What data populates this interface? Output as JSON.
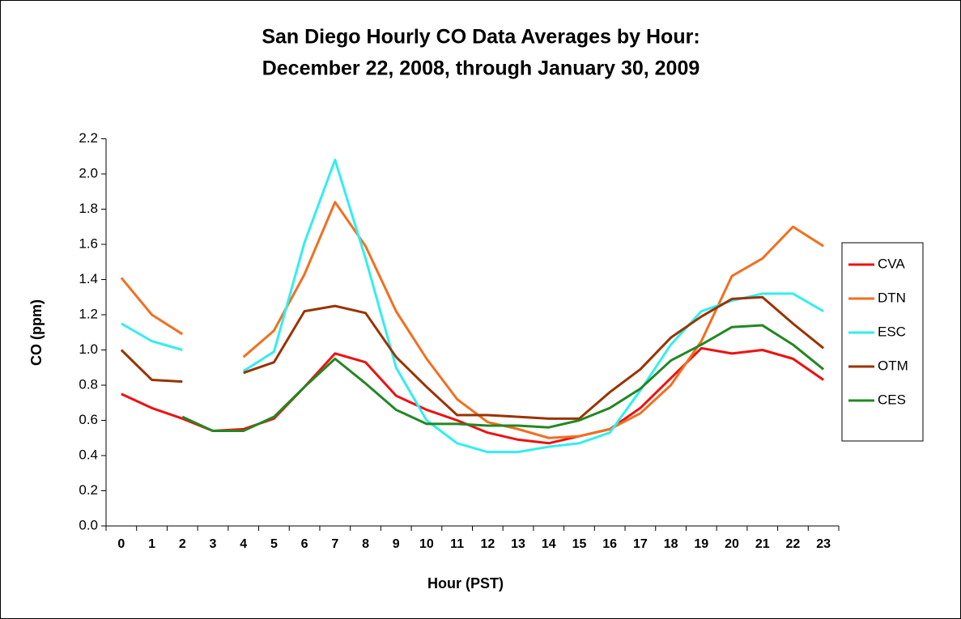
{
  "chart_data": {
    "type": "line",
    "title": [
      "San Diego Hourly CO Data Averages by Hour:",
      "December 22, 2008, through January 30, 2009"
    ],
    "x_label": "Hour (PST)",
    "y_label": "CO (ppm)",
    "categories": [
      "0",
      "1",
      "2",
      "3",
      "4",
      "5",
      "6",
      "7",
      "8",
      "9",
      "10",
      "11",
      "12",
      "13",
      "14",
      "15",
      "16",
      "17",
      "18",
      "19",
      "20",
      "21",
      "22",
      "23"
    ],
    "ylim": [
      0,
      2.2
    ],
    "yticks": [
      {
        "value": 0,
        "label": "0.0"
      },
      0.2,
      0.4,
      0.6,
      0.8,
      {
        "value": 1,
        "label": "1.0"
      },
      1.2,
      1.4,
      1.6,
      1.8,
      {
        "value": 2,
        "label": "2.0"
      },
      2.2
    ],
    "legend": "right",
    "series": [
      {
        "name": "CVA",
        "color": "#ee1111",
        "values": [
          0.75,
          0.67,
          0.61,
          0.54,
          0.55,
          0.61,
          0.79,
          0.98,
          0.93,
          0.74,
          0.66,
          0.6,
          0.53,
          0.49,
          0.47,
          0.51,
          0.55,
          0.67,
          0.84,
          1.01,
          0.98,
          1.0,
          0.95,
          0.83
        ]
      },
      {
        "name": "DTN",
        "color": "#f07020",
        "values": [
          1.41,
          1.2,
          1.09,
          null,
          0.96,
          1.11,
          1.43,
          1.84,
          1.59,
          1.22,
          0.95,
          0.72,
          0.59,
          0.55,
          0.5,
          0.51,
          0.55,
          0.64,
          0.8,
          1.05,
          1.42,
          1.52,
          1.7,
          1.59
        ]
      },
      {
        "name": "ESC",
        "color": "#33eeee",
        "values": [
          1.15,
          1.05,
          1.0,
          null,
          0.88,
          0.99,
          1.61,
          2.08,
          1.52,
          0.9,
          0.6,
          0.47,
          0.42,
          0.42,
          0.45,
          0.47,
          0.53,
          0.77,
          1.03,
          1.22,
          1.28,
          1.32,
          1.32,
          1.22
        ]
      },
      {
        "name": "OTM",
        "color": "#993300",
        "values": [
          1.0,
          0.83,
          0.82,
          null,
          0.87,
          0.93,
          1.22,
          1.25,
          1.21,
          0.96,
          0.79,
          0.63,
          0.63,
          0.62,
          0.61,
          0.61,
          0.76,
          0.89,
          1.07,
          1.19,
          1.29,
          1.3,
          1.15,
          1.01
        ]
      },
      {
        "name": "CES",
        "color": "#228822",
        "values": [
          null,
          null,
          0.62,
          0.54,
          0.54,
          0.62,
          0.79,
          0.95,
          0.81,
          0.66,
          0.58,
          0.58,
          0.57,
          0.57,
          0.56,
          0.6,
          0.67,
          0.78,
          0.94,
          1.03,
          1.13,
          1.14,
          1.03,
          0.89
        ]
      }
    ]
  }
}
